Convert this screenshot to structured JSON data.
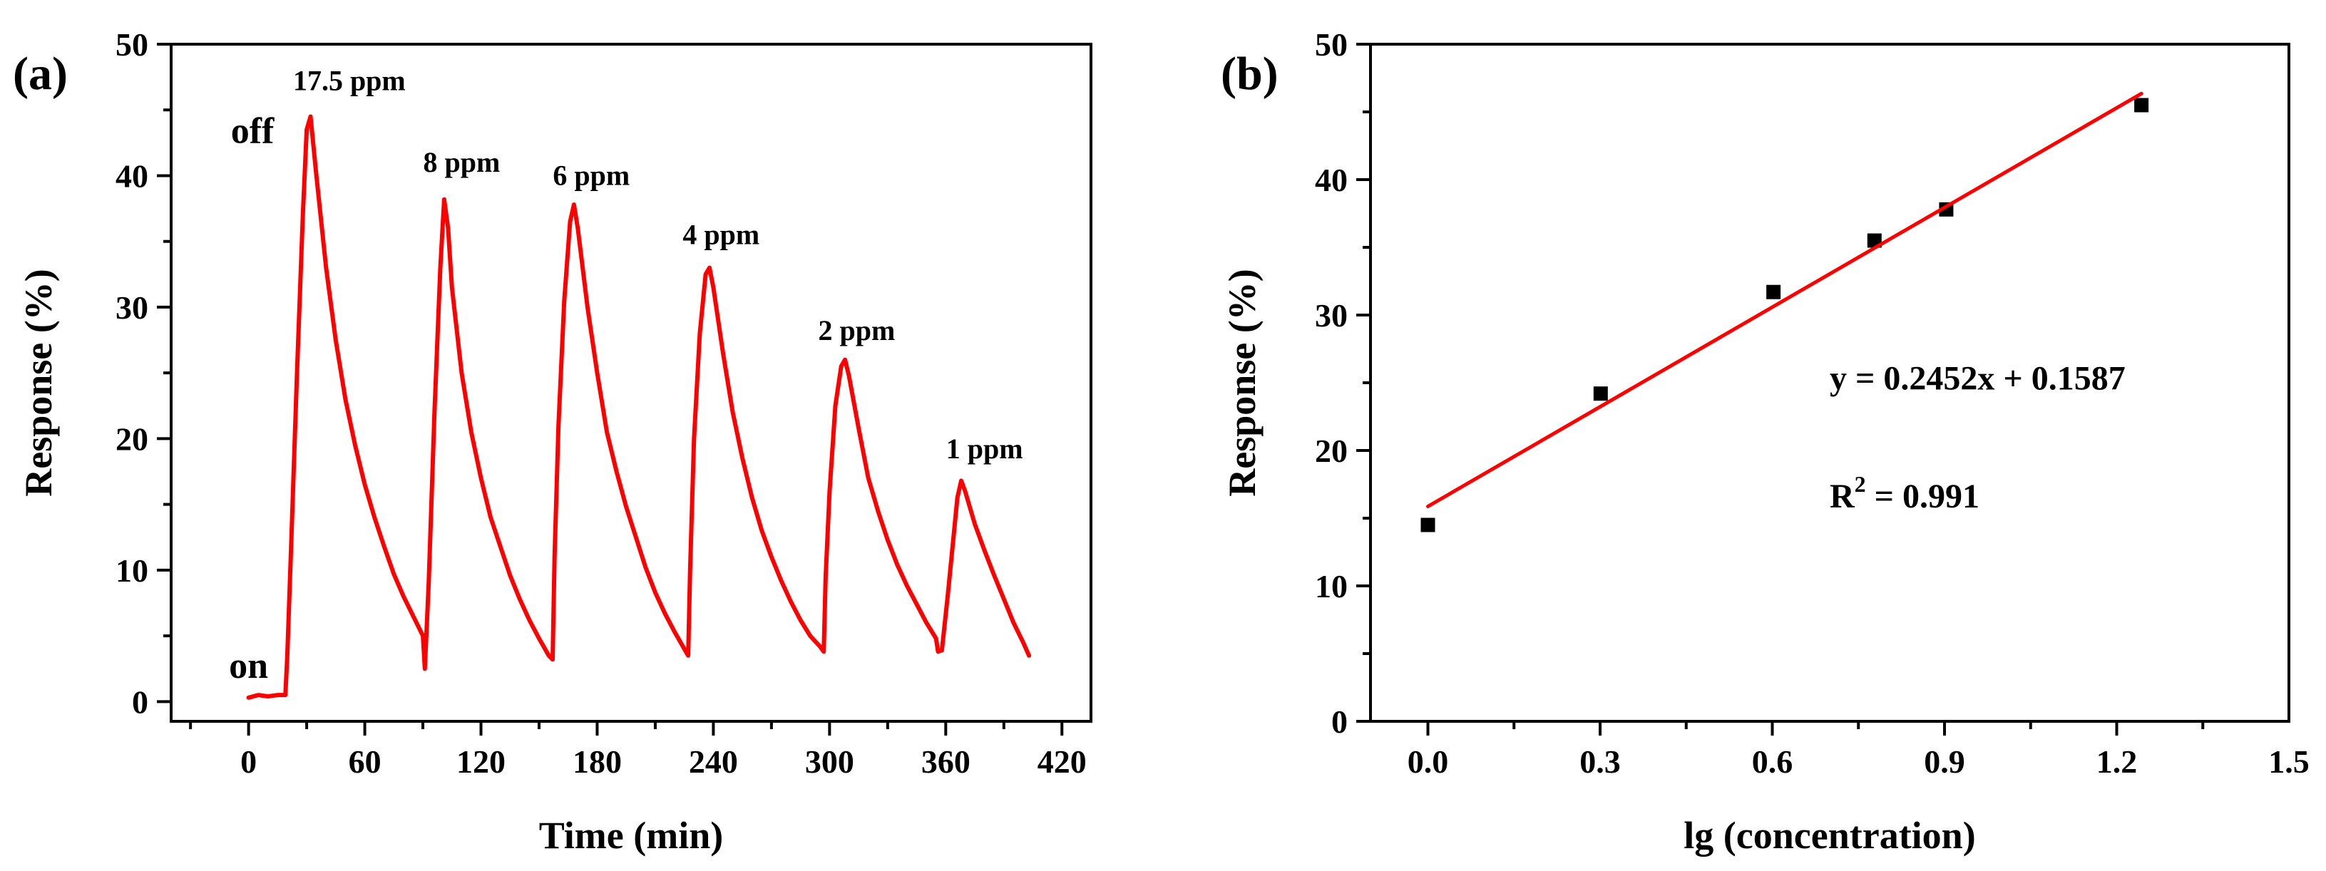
{
  "chart_data": [
    {
      "panel_label": "(a)",
      "type": "line",
      "title": "",
      "xlabel": "Time (min)",
      "ylabel": "Response (%)",
      "xlim": [
        -40,
        435
      ],
      "ylim": [
        -1.5,
        50
      ],
      "xticks": [
        0,
        60,
        120,
        180,
        240,
        300,
        360,
        420
      ],
      "yticks": [
        0,
        10,
        20,
        30,
        40,
        50
      ],
      "series": [
        {
          "name": "Response",
          "color": "#ff0000",
          "x": [
            0,
            5,
            10,
            15,
            19,
            20,
            22,
            25,
            28,
            30,
            32,
            35,
            40,
            45,
            50,
            55,
            60,
            65,
            70,
            75,
            80,
            85,
            90,
            91,
            93,
            96,
            99,
            101,
            103,
            105,
            110,
            115,
            120,
            125,
            130,
            135,
            140,
            145,
            150,
            155,
            157,
            158,
            160,
            163,
            166,
            168,
            170,
            175,
            180,
            185,
            190,
            195,
            200,
            205,
            210,
            215,
            220,
            225,
            227,
            228,
            230,
            233,
            236,
            238,
            240,
            245,
            250,
            255,
            260,
            265,
            270,
            275,
            280,
            285,
            290,
            295,
            297,
            298,
            300,
            303,
            306,
            308,
            310,
            315,
            320,
            325,
            330,
            335,
            340,
            345,
            350,
            355,
            356,
            358,
            361,
            364,
            366,
            368,
            370,
            375,
            380,
            385,
            390,
            395,
            400,
            403
          ],
          "y": [
            0.3,
            0.5,
            0.4,
            0.5,
            0.5,
            3.5,
            12,
            25,
            37,
            43.5,
            44.5,
            40,
            33,
            27.5,
            23,
            19.5,
            16.5,
            14,
            11.8,
            9.7,
            8,
            6.5,
            5,
            2.5,
            9,
            22,
            33,
            38.2,
            36,
            31.5,
            25,
            20.5,
            17,
            14,
            11.8,
            9.6,
            7.8,
            6.2,
            4.8,
            3.5,
            3.2,
            11,
            21,
            30.5,
            36.5,
            37.8,
            36,
            30,
            25,
            20.5,
            17.5,
            14.8,
            12.5,
            10.2,
            8.3,
            6.7,
            5.3,
            4,
            3.5,
            10,
            20,
            28,
            32.5,
            33,
            31.5,
            26.5,
            22,
            18.5,
            15.5,
            13,
            11,
            9.2,
            7.6,
            6.2,
            5,
            4.2,
            3.8,
            9.5,
            16,
            22.5,
            25.5,
            26,
            24.8,
            20.8,
            17,
            14.5,
            12.3,
            10.4,
            8.8,
            7.4,
            6,
            4.8,
            3.8,
            3.9,
            8,
            12.5,
            15.5,
            16.8,
            16,
            13.5,
            11.5,
            9.6,
            7.8,
            6,
            4.5,
            3.5
          ]
        }
      ],
      "annotations": [
        {
          "text": "17.5 ppm",
          "x": 52,
          "y": 46.5
        },
        {
          "text": "off",
          "x": 2,
          "y": 42.5
        },
        {
          "text": "8 ppm",
          "x": 110,
          "y": 40.3
        },
        {
          "text": "6 ppm",
          "x": 177,
          "y": 39.3
        },
        {
          "text": "4 ppm",
          "x": 244,
          "y": 34.8
        },
        {
          "text": "2 ppm",
          "x": 314,
          "y": 27.5
        },
        {
          "text": "1 ppm",
          "x": 380,
          "y": 18.5
        },
        {
          "text": "on",
          "x": 0,
          "y": 1.8
        }
      ]
    },
    {
      "panel_label": "(b)",
      "type": "scatter",
      "title": "",
      "xlabel": "lg (concentration)",
      "ylabel": "Response (%)",
      "xlim": [
        -0.1,
        1.5
      ],
      "ylim": [
        0,
        50
      ],
      "xticks": [
        0.0,
        0.3,
        0.6,
        0.9,
        1.2,
        1.5
      ],
      "xtick_labels": [
        "0.0",
        "0.3",
        "0.6",
        "0.9",
        "1.2",
        "1.5"
      ],
      "yticks": [
        0,
        10,
        20,
        30,
        40,
        50
      ],
      "series": [
        {
          "name": "data",
          "color": "#000000",
          "x": [
            0.0,
            0.301,
            0.602,
            0.778,
            0.903,
            1.243
          ],
          "y": [
            14.5,
            24.2,
            31.7,
            35.5,
            37.8,
            45.5
          ]
        },
        {
          "name": "linear fit",
          "color": "#ff0000",
          "x": [
            0.0,
            1.243
          ],
          "y": [
            15.87,
            46.35
          ]
        }
      ],
      "annotations": [
        {
          "text": "y = 0.2452x + 0.1587",
          "x": 0.7,
          "y": 24.5
        },
        {
          "text": "R",
          "sup": "2",
          "rest": " = 0.991",
          "x": 0.7,
          "y": 15.8
        }
      ]
    }
  ]
}
